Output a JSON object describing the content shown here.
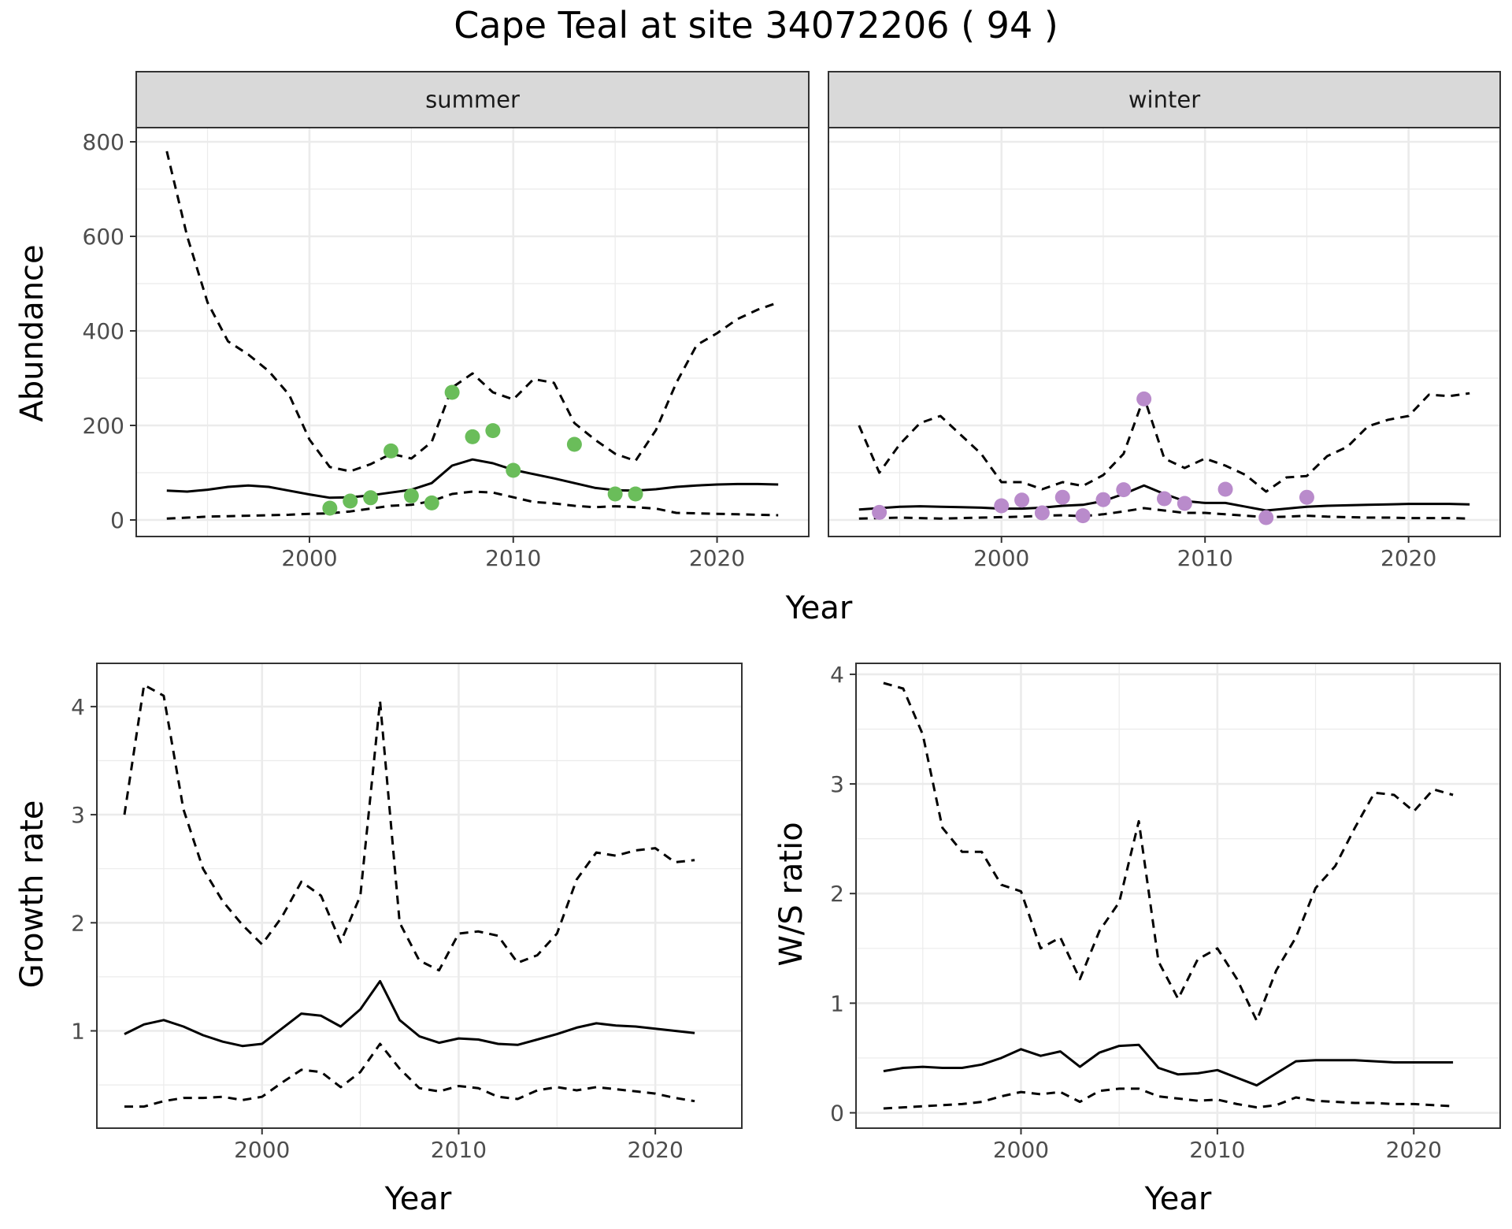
{
  "title": "Cape Teal at site 34072206 ( 94 )",
  "colors": {
    "summer_points": "#6ABD5A",
    "winter_points": "#B98BCB",
    "line": "#000000",
    "grid": "#EBEBEB",
    "strip": "#D9D9D9"
  },
  "chart_data": [
    {
      "type": "line",
      "panel": "summer",
      "strip_label": "summer",
      "xlabel": "Year",
      "ylabel": "Abundance",
      "xlim": [
        1991.5,
        2024.5
      ],
      "ylim": [
        -35,
        830
      ],
      "xticks": [
        2000,
        2010,
        2020
      ],
      "yticks": [
        0,
        200,
        400,
        600,
        800
      ],
      "x": [
        1993,
        1994,
        1995,
        1996,
        1997,
        1998,
        1999,
        2000,
        2001,
        2002,
        2003,
        2004,
        2005,
        2006,
        2007,
        2008,
        2009,
        2010,
        2011,
        2012,
        2013,
        2014,
        2015,
        2016,
        2017,
        2018,
        2019,
        2020,
        2021,
        2022,
        2023
      ],
      "series": [
        {
          "role": "estimate",
          "style": "solid",
          "values": [
            62,
            60,
            64,
            70,
            73,
            70,
            62,
            54,
            47,
            48,
            52,
            58,
            64,
            78,
            115,
            128,
            120,
            106,
            97,
            88,
            78,
            68,
            63,
            62,
            65,
            70,
            73,
            75,
            76,
            76,
            75
          ]
        },
        {
          "role": "upper",
          "style": "dashed",
          "values": [
            780,
            600,
            460,
            378,
            350,
            315,
            265,
            170,
            112,
            103,
            118,
            140,
            130,
            165,
            280,
            310,
            270,
            255,
            298,
            290,
            205,
            170,
            140,
            125,
            190,
            290,
            370,
            395,
            425,
            445,
            460
          ]
        },
        {
          "role": "lower",
          "style": "dashed",
          "values": [
            3,
            5,
            7,
            8,
            9,
            10,
            11,
            13,
            14,
            18,
            24,
            30,
            32,
            40,
            55,
            60,
            58,
            48,
            38,
            35,
            30,
            27,
            29,
            27,
            24,
            15,
            14,
            13,
            12,
            11,
            10
          ]
        }
      ],
      "points": {
        "x": [
          2001,
          2002,
          2003,
          2004,
          2005,
          2006,
          2007,
          2008,
          2009,
          2010,
          2013,
          2015,
          2016
        ],
        "y": [
          25,
          40,
          47,
          146,
          51,
          36,
          270,
          176,
          189,
          105,
          160,
          55,
          55
        ]
      }
    },
    {
      "type": "line",
      "panel": "winter",
      "strip_label": "winter",
      "xlabel": "Year",
      "ylabel": "Abundance",
      "xlim": [
        1991.5,
        2024.5
      ],
      "ylim": [
        -35,
        830
      ],
      "xticks": [
        2000,
        2010,
        2020
      ],
      "yticks": [
        0,
        200,
        400,
        600,
        800
      ],
      "x": [
        1993,
        1994,
        1995,
        1996,
        1997,
        1998,
        1999,
        2000,
        2001,
        2002,
        2003,
        2004,
        2005,
        2006,
        2007,
        2008,
        2009,
        2010,
        2011,
        2012,
        2013,
        2014,
        2015,
        2016,
        2017,
        2018,
        2019,
        2020,
        2021,
        2022,
        2023
      ],
      "series": [
        {
          "role": "estimate",
          "style": "solid",
          "values": [
            22,
            25,
            28,
            29,
            28,
            27,
            26,
            24,
            24,
            26,
            30,
            32,
            40,
            55,
            73,
            55,
            40,
            36,
            36,
            28,
            20,
            24,
            28,
            30,
            31,
            32,
            33,
            34,
            34,
            34,
            33
          ]
        },
        {
          "role": "upper",
          "style": "dashed",
          "values": [
            200,
            100,
            160,
            205,
            220,
            180,
            140,
            80,
            80,
            65,
            80,
            72,
            95,
            140,
            260,
            130,
            110,
            130,
            115,
            95,
            60,
            90,
            93,
            135,
            155,
            198,
            212,
            220,
            265,
            262,
            268
          ]
        },
        {
          "role": "lower",
          "style": "dashed",
          "values": [
            3,
            4,
            5,
            4,
            3,
            4,
            5,
            6,
            7,
            9,
            10,
            8,
            12,
            18,
            25,
            20,
            15,
            15,
            12,
            9,
            6,
            7,
            9,
            7,
            6,
            5,
            5,
            4,
            4,
            4,
            3
          ]
        }
      ],
      "points": {
        "x": [
          1994,
          2000,
          2001,
          2002,
          2003,
          2004,
          2005,
          2006,
          2007,
          2008,
          2009,
          2011,
          2013,
          2015
        ],
        "y": [
          16,
          30,
          42,
          15,
          48,
          9,
          43,
          64,
          256,
          45,
          35,
          65,
          5,
          48
        ]
      }
    },
    {
      "type": "line",
      "panel": "growth",
      "xlabel": "Year",
      "ylabel": "Growth rate",
      "xlim": [
        1991.6,
        2024.4
      ],
      "ylim": [
        0.1,
        4.4
      ],
      "xticks": [
        2000,
        2010,
        2020
      ],
      "yticks": [
        1,
        2,
        3,
        4
      ],
      "x": [
        1993,
        1994,
        1995,
        1996,
        1997,
        1998,
        1999,
        2000,
        2001,
        2002,
        2003,
        2004,
        2005,
        2006,
        2007,
        2008,
        2009,
        2010,
        2011,
        2012,
        2013,
        2014,
        2015,
        2016,
        2017,
        2018,
        2019,
        2020,
        2021,
        2022
      ],
      "series": [
        {
          "role": "estimate",
          "style": "solid",
          "values": [
            0.97,
            1.06,
            1.1,
            1.04,
            0.96,
            0.9,
            0.86,
            0.88,
            1.02,
            1.16,
            1.14,
            1.04,
            1.2,
            1.46,
            1.1,
            0.95,
            0.89,
            0.93,
            0.92,
            0.88,
            0.87,
            0.92,
            0.97,
            1.03,
            1.07,
            1.05,
            1.04,
            1.02,
            1.0,
            0.98
          ]
        },
        {
          "role": "upper",
          "style": "dashed",
          "values": [
            3.0,
            4.2,
            4.1,
            3.05,
            2.5,
            2.2,
            1.98,
            1.8,
            2.05,
            2.38,
            2.25,
            1.82,
            2.25,
            4.05,
            2.0,
            1.65,
            1.56,
            1.9,
            1.92,
            1.88,
            1.63,
            1.7,
            1.9,
            2.4,
            2.65,
            2.62,
            2.67,
            2.69,
            2.56,
            2.58
          ]
        },
        {
          "role": "lower",
          "style": "dashed",
          "values": [
            0.3,
            0.3,
            0.35,
            0.38,
            0.38,
            0.39,
            0.36,
            0.39,
            0.52,
            0.64,
            0.62,
            0.48,
            0.62,
            0.88,
            0.65,
            0.47,
            0.44,
            0.49,
            0.47,
            0.39,
            0.37,
            0.45,
            0.48,
            0.45,
            0.48,
            0.46,
            0.44,
            0.42,
            0.38,
            0.35
          ]
        }
      ]
    },
    {
      "type": "line",
      "panel": "ws_ratio",
      "xlabel": "Year",
      "ylabel": "W/S ratio",
      "xlim": [
        1991.6,
        2024.4
      ],
      "ylim": [
        -0.14,
        4.1
      ],
      "xticks": [
        2000,
        2010,
        2020
      ],
      "yticks": [
        0,
        1,
        2,
        3,
        4
      ],
      "x": [
        1993,
        1994,
        1995,
        1996,
        1997,
        1998,
        1999,
        2000,
        2001,
        2002,
        2003,
        2004,
        2005,
        2006,
        2007,
        2008,
        2009,
        2010,
        2011,
        2012,
        2013,
        2014,
        2015,
        2016,
        2017,
        2018,
        2019,
        2020,
        2021,
        2022
      ],
      "series": [
        {
          "role": "estimate",
          "style": "solid",
          "values": [
            0.38,
            0.41,
            0.42,
            0.41,
            0.41,
            0.44,
            0.5,
            0.58,
            0.52,
            0.56,
            0.42,
            0.55,
            0.61,
            0.62,
            0.41,
            0.35,
            0.36,
            0.39,
            0.32,
            0.25,
            0.36,
            0.47,
            0.48,
            0.48,
            0.48,
            0.47,
            0.46,
            0.46,
            0.46,
            0.46
          ]
        },
        {
          "role": "upper",
          "style": "dashed",
          "values": [
            3.92,
            3.87,
            3.45,
            2.6,
            2.38,
            2.38,
            2.08,
            2.02,
            1.5,
            1.6,
            1.22,
            1.66,
            1.92,
            2.66,
            1.38,
            1.04,
            1.4,
            1.5,
            1.22,
            0.84,
            1.3,
            1.6,
            2.05,
            2.25,
            2.6,
            2.92,
            2.9,
            2.75,
            2.95,
            2.9
          ]
        },
        {
          "role": "lower",
          "style": "dashed",
          "values": [
            0.04,
            0.05,
            0.06,
            0.07,
            0.08,
            0.1,
            0.15,
            0.19,
            0.17,
            0.19,
            0.1,
            0.2,
            0.22,
            0.22,
            0.15,
            0.13,
            0.11,
            0.12,
            0.08,
            0.05,
            0.07,
            0.14,
            0.11,
            0.1,
            0.09,
            0.09,
            0.08,
            0.08,
            0.07,
            0.06
          ]
        }
      ]
    }
  ]
}
